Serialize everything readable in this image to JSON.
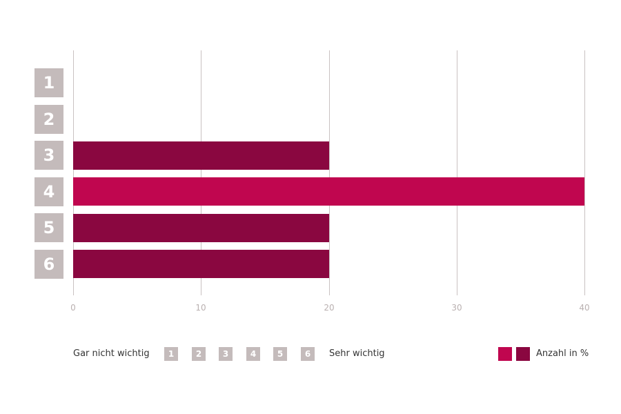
{
  "chart_data": {
    "type": "bar",
    "orientation": "horizontal",
    "title": "",
    "xlabel": "",
    "ylabel": "",
    "categories": [
      "1",
      "2",
      "3",
      "4",
      "5",
      "6"
    ],
    "series": [
      {
        "name": "Anzahl in %",
        "values": [
          0,
          0,
          20,
          40,
          20,
          20
        ]
      }
    ],
    "xlim": [
      0,
      40
    ],
    "x_ticks": [
      "0",
      "10",
      "20",
      "30",
      "40"
    ],
    "grid": "vertical",
    "bar_colors": [
      "#8A0740",
      "#8A0740",
      "#8A0740",
      "#C0064F",
      "#8A0740",
      "#8A0740"
    ],
    "legend_position": "bottom"
  },
  "colors": {
    "highlight": "#C0064F",
    "normal": "#8A0740",
    "category_box": "#C4BBBB",
    "grid": "#C9C1C1"
  },
  "legend": {
    "scale_low_label": "Gar nicht wichtig",
    "scale_high_label": "Sehr wichtig",
    "scale_items": [
      "1",
      "2",
      "3",
      "4",
      "5",
      "6"
    ],
    "series_label": "Anzahl in %"
  }
}
